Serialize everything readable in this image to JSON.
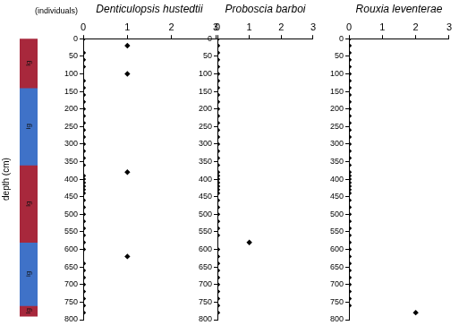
{
  "chart_data": [
    {
      "type": "bar",
      "stacked": true,
      "ylabel": "depth (cm)",
      "ylim": [
        0,
        800
      ],
      "tick_labels": false,
      "categories": [
        null
      ],
      "series": [
        {
          "name": "lg",
          "color": "#a8283c",
          "values": [
            140
          ]
        },
        {
          "name": "ig",
          "color": "#3f72c8",
          "values": [
            220
          ]
        },
        {
          "name": "lg",
          "color": "#a8283c",
          "values": [
            220
          ]
        },
        {
          "name": "ig",
          "color": "#3f72c8",
          "values": [
            180
          ]
        },
        {
          "name": "lg",
          "color": "#a8283c",
          "values": [
            30
          ]
        }
      ]
    },
    {
      "type": "scatter",
      "title": "Denticulopsis hustedtii",
      "xlabel": "(individuals)",
      "marker": "diamond",
      "color": "#000000",
      "xlim": [
        0,
        3
      ],
      "xticks": [
        0,
        1,
        2,
        3
      ],
      "ylim": [
        0,
        800
      ],
      "yticks": [
        0,
        50,
        100,
        150,
        200,
        250,
        300,
        350,
        400,
        450,
        500,
        550,
        600,
        650,
        700,
        750,
        800
      ],
      "y": [
        0,
        20,
        40,
        60,
        80,
        100,
        120,
        140,
        160,
        180,
        200,
        220,
        240,
        260,
        280,
        300,
        320,
        340,
        360,
        380,
        390,
        400,
        410,
        420,
        430,
        440,
        460,
        480,
        500,
        520,
        540,
        560,
        580,
        600,
        620,
        640,
        660,
        680,
        700,
        720,
        740,
        760,
        780
      ],
      "x": [
        0,
        1,
        0,
        0,
        0,
        1,
        0,
        0,
        0,
        0,
        0,
        0,
        0,
        0,
        0,
        0,
        0,
        0,
        0,
        1,
        0,
        0,
        0,
        0,
        0,
        0,
        0,
        0,
        0,
        0,
        0,
        0,
        0,
        0,
        1,
        0,
        0,
        0,
        0,
        0,
        0,
        0,
        0
      ]
    },
    {
      "type": "scatter",
      "title": "Proboscia barboi",
      "marker": "diamond",
      "color": "#000000",
      "xlim": [
        0,
        3
      ],
      "xticks": [
        0,
        1,
        2,
        3
      ],
      "ylim": [
        0,
        800
      ],
      "yticks": [
        0,
        50,
        100,
        150,
        200,
        250,
        300,
        350,
        400,
        450,
        500,
        550,
        600,
        650,
        700,
        750,
        800
      ],
      "y": [
        0,
        20,
        40,
        60,
        80,
        100,
        120,
        140,
        160,
        180,
        200,
        220,
        240,
        260,
        280,
        300,
        320,
        340,
        360,
        380,
        390,
        400,
        410,
        420,
        430,
        440,
        460,
        480,
        500,
        520,
        540,
        560,
        580,
        600,
        620,
        640,
        660,
        680,
        700,
        720,
        740,
        760,
        780
      ],
      "x": [
        0,
        0,
        0,
        0,
        0,
        0,
        0,
        0,
        0,
        0,
        0,
        0,
        0,
        0,
        0,
        0,
        0,
        0,
        0,
        0,
        0,
        0,
        0,
        0,
        0,
        0,
        0,
        0,
        0,
        0,
        0,
        0,
        1,
        0,
        0,
        0,
        0,
        0,
        0,
        0,
        0,
        0,
        0
      ]
    },
    {
      "type": "scatter",
      "title": "Rouxia leventerae",
      "marker": "diamond",
      "color": "#000000",
      "xlim": [
        0,
        3
      ],
      "xticks": [
        0,
        1,
        2,
        3
      ],
      "ylim": [
        0,
        800
      ],
      "yticks": [
        0,
        50,
        100,
        150,
        200,
        250,
        300,
        350,
        400,
        450,
        500,
        550,
        600,
        650,
        700,
        750,
        800
      ],
      "y": [
        0,
        20,
        40,
        60,
        80,
        100,
        120,
        140,
        160,
        180,
        200,
        220,
        240,
        260,
        280,
        300,
        320,
        340,
        360,
        380,
        390,
        400,
        410,
        420,
        430,
        440,
        460,
        480,
        500,
        520,
        540,
        560,
        580,
        600,
        620,
        640,
        660,
        680,
        700,
        720,
        740,
        760,
        780
      ],
      "x": [
        0,
        0,
        0,
        0,
        0,
        0,
        0,
        0,
        0,
        0,
        0,
        0,
        0,
        0,
        0,
        0,
        0,
        0,
        0,
        0,
        0,
        0,
        0,
        0,
        0,
        0,
        0,
        0,
        0,
        0,
        0,
        0,
        0,
        0,
        0,
        0,
        0,
        0,
        0,
        0,
        0,
        0,
        2
      ]
    }
  ]
}
